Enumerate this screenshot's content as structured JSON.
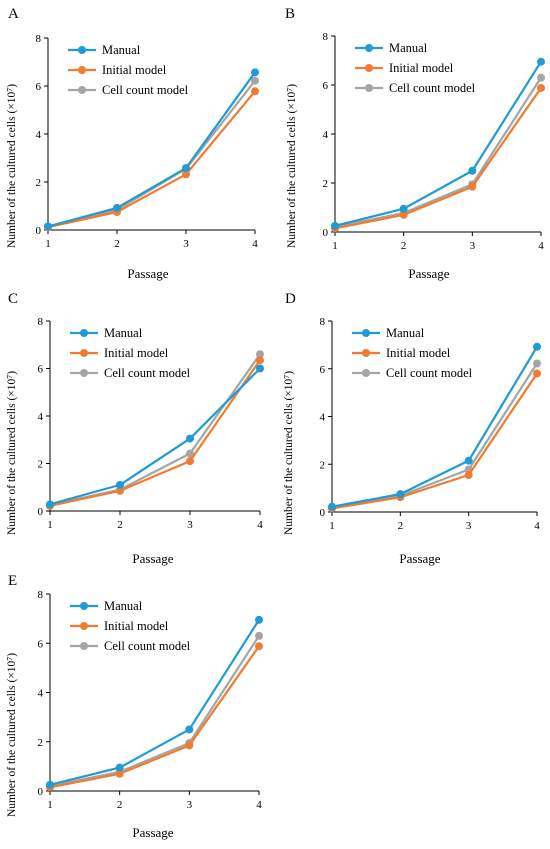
{
  "figure": {
    "y_axis_label": "Number of the cultured cells (×10⁷)",
    "x_axis_label": "Passage"
  },
  "chart_data": [
    {
      "type": "line",
      "panel": "A",
      "xlabel": "Passage",
      "ylabel": "Number of the cultured cells (×10⁷)",
      "x": [
        1,
        2,
        3,
        4
      ],
      "xlim": [
        1,
        4
      ],
      "ylim": [
        0,
        8
      ],
      "yticks": [
        0,
        2,
        4,
        6,
        8
      ],
      "grid": false,
      "legend": "top-left",
      "series": [
        {
          "name": "Manual",
          "color": "#1f9bd6",
          "values": [
            0.15,
            0.92,
            2.58,
            6.57
          ]
        },
        {
          "name": "Initial model",
          "color": "#f07b31",
          "values": [
            0.12,
            0.75,
            2.32,
            5.78
          ]
        },
        {
          "name": "Cell count model",
          "color": "#a5a5a5",
          "values": [
            0.14,
            0.84,
            2.55,
            6.22
          ]
        }
      ]
    },
    {
      "type": "line",
      "panel": "B",
      "xlabel": "Passage",
      "ylabel": "Number of the cultured cells (×10⁷)",
      "x": [
        1,
        2,
        3,
        4
      ],
      "xlim": [
        1,
        4
      ],
      "ylim": [
        0,
        8
      ],
      "yticks": [
        0,
        2,
        4,
        6,
        8
      ],
      "grid": false,
      "legend": "top-left",
      "series": [
        {
          "name": "Manual",
          "color": "#1f9bd6",
          "values": [
            0.25,
            0.95,
            2.5,
            6.95
          ]
        },
        {
          "name": "Initial model",
          "color": "#f07b31",
          "values": [
            0.15,
            0.7,
            1.85,
            5.88
          ]
        },
        {
          "name": "Cell count model",
          "color": "#a5a5a5",
          "values": [
            0.2,
            0.78,
            1.95,
            6.3
          ]
        }
      ]
    },
    {
      "type": "line",
      "panel": "C",
      "xlabel": "Passage",
      "ylabel": "Number of the cultured cells (×10⁷)",
      "x": [
        1,
        2,
        3,
        4
      ],
      "xlim": [
        1,
        4
      ],
      "ylim": [
        0,
        8
      ],
      "yticks": [
        0,
        2,
        4,
        6,
        8
      ],
      "grid": false,
      "legend": "top-left",
      "series": [
        {
          "name": "Manual",
          "color": "#1f9bd6",
          "values": [
            0.28,
            1.1,
            3.05,
            6.0
          ]
        },
        {
          "name": "Initial model",
          "color": "#f07b31",
          "values": [
            0.22,
            0.85,
            2.1,
            6.35
          ]
        },
        {
          "name": "Cell count model",
          "color": "#a5a5a5",
          "values": [
            0.25,
            0.9,
            2.42,
            6.6
          ]
        }
      ]
    },
    {
      "type": "line",
      "panel": "D",
      "xlabel": "Passage",
      "ylabel": "Number of the cultured cells (×10⁷)",
      "x": [
        1,
        2,
        3,
        4
      ],
      "xlim": [
        1,
        4
      ],
      "ylim": [
        0,
        8
      ],
      "yticks": [
        0,
        2,
        4,
        6,
        8
      ],
      "grid": false,
      "legend": "top-left",
      "series": [
        {
          "name": "Manual",
          "color": "#1f9bd6",
          "values": [
            0.22,
            0.75,
            2.15,
            6.92
          ]
        },
        {
          "name": "Initial model",
          "color": "#f07b31",
          "values": [
            0.15,
            0.62,
            1.55,
            5.8
          ]
        },
        {
          "name": "Cell count model",
          "color": "#a5a5a5",
          "values": [
            0.2,
            0.68,
            1.78,
            6.22
          ]
        }
      ]
    },
    {
      "type": "line",
      "panel": "E",
      "xlabel": "Passage",
      "ylabel": "Number of the cultured cells (×10⁷)",
      "x": [
        1,
        2,
        3,
        4
      ],
      "xlim": [
        1,
        4
      ],
      "ylim": [
        0,
        8
      ],
      "yticks": [
        0,
        2,
        4,
        6,
        8
      ],
      "grid": false,
      "legend": "top-left",
      "series": [
        {
          "name": "Manual",
          "color": "#1f9bd6",
          "values": [
            0.25,
            0.95,
            2.5,
            6.95
          ]
        },
        {
          "name": "Initial model",
          "color": "#f07b31",
          "values": [
            0.15,
            0.7,
            1.85,
            5.88
          ]
        },
        {
          "name": "Cell count model",
          "color": "#a5a5a5",
          "values": [
            0.2,
            0.78,
            1.95,
            6.3
          ]
        }
      ]
    }
  ]
}
